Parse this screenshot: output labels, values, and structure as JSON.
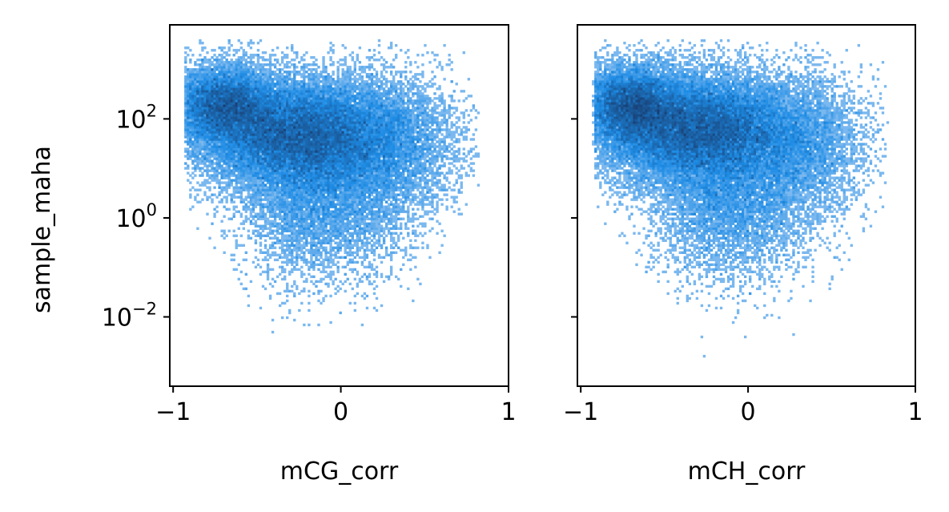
{
  "chart_data": [
    {
      "type": "heatmap",
      "subtype": "2d-histogram",
      "xlabel": "mCG_corr",
      "ylabel": "sample_maha",
      "xlim": [
        -1.02,
        1.0
      ],
      "ylim_log10": [
        -3.4,
        3.9
      ],
      "y_scale": "log",
      "x_ticks": [
        {
          "value": -1,
          "label": "−1"
        },
        {
          "value": 0,
          "label": "0"
        },
        {
          "value": 1,
          "label": "1"
        }
      ],
      "y_ticks": [
        {
          "exp": 2,
          "base": "10",
          "sup": "2"
        },
        {
          "exp": 0,
          "base": "10",
          "sup": "0"
        },
        {
          "exp": -2,
          "base": "10",
          "sup": "−2"
        }
      ],
      "grid": false,
      "color": "#1f8fe5",
      "density_peak": {
        "x": -0.25,
        "log10_y": 1.7
      },
      "x_range_of_data": [
        -0.93,
        0.82
      ],
      "y_range_of_data_log10": [
        -3.2,
        3.6
      ],
      "seed": 11
    },
    {
      "type": "heatmap",
      "subtype": "2d-histogram",
      "xlabel": "mCH_corr",
      "ylabel": "",
      "xlim": [
        -1.02,
        1.0
      ],
      "ylim_log10": [
        -3.4,
        3.9
      ],
      "y_scale": "log",
      "shared_y": true,
      "x_ticks": [
        {
          "value": -1,
          "label": "−1"
        },
        {
          "value": 0,
          "label": "0"
        },
        {
          "value": 1,
          "label": "1"
        }
      ],
      "grid": false,
      "color": "#1f8fe5",
      "density_peak": {
        "x": -0.3,
        "log10_y": 1.8
      },
      "x_range_of_data": [
        -0.92,
        0.83
      ],
      "y_range_of_data_log10": [
        -3.2,
        3.6
      ],
      "seed": 29
    }
  ]
}
